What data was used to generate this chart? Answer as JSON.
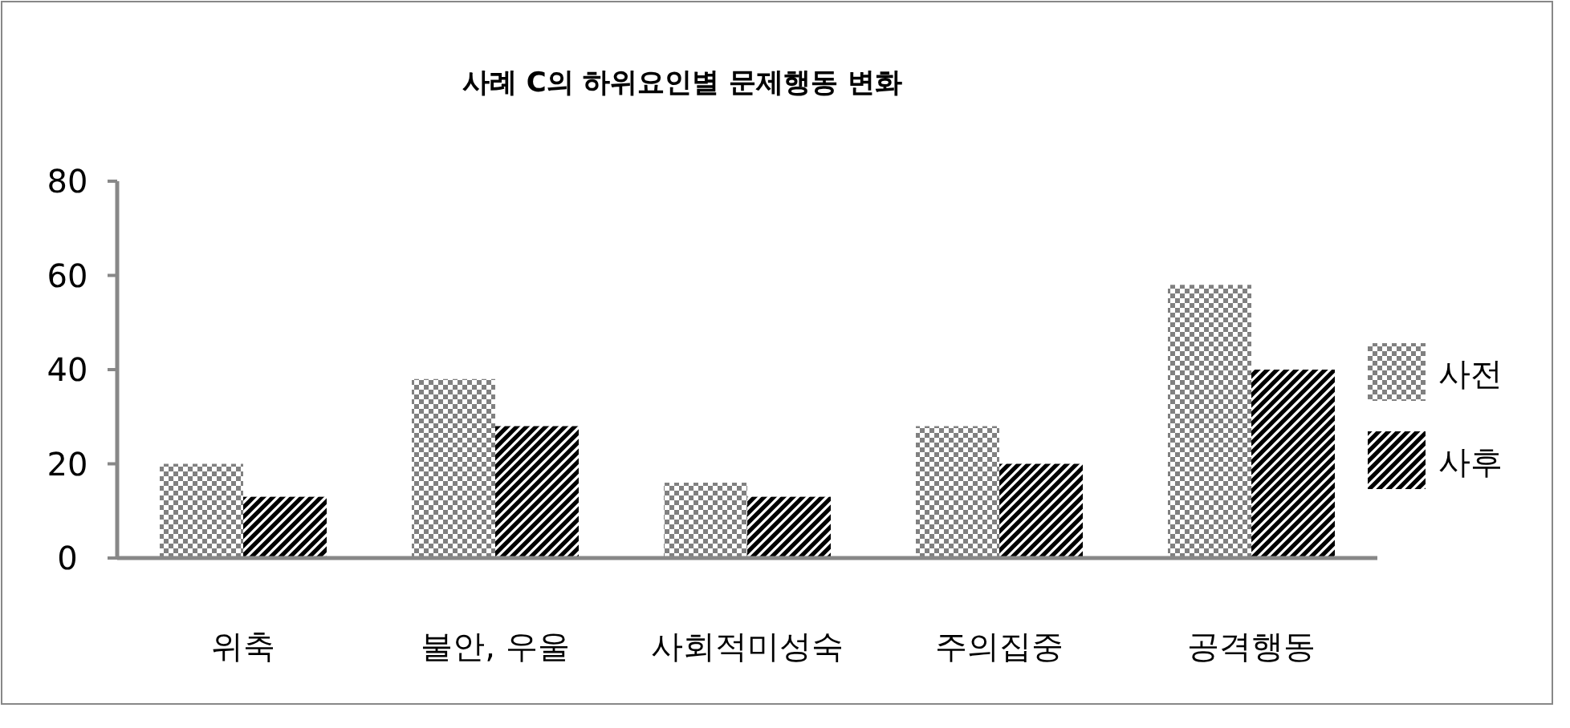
{
  "chart_data": {
    "type": "bar",
    "title": "사례 C의 하위요인별 문제행동 변화",
    "categories": [
      "위축",
      "불안, 우울",
      "사회적미성숙",
      "주의집중",
      "공격행동"
    ],
    "series": [
      {
        "name": "사전",
        "color": "#808080",
        "values": [
          20,
          38,
          16,
          28,
          58
        ]
      },
      {
        "name": "사후",
        "color": "#000000",
        "values": [
          13,
          28,
          13,
          20,
          40
        ]
      }
    ],
    "ylim": [
      0,
      80
    ],
    "yticks": [
      0,
      20,
      40,
      60,
      80
    ],
    "grid": false,
    "legend": "right"
  }
}
